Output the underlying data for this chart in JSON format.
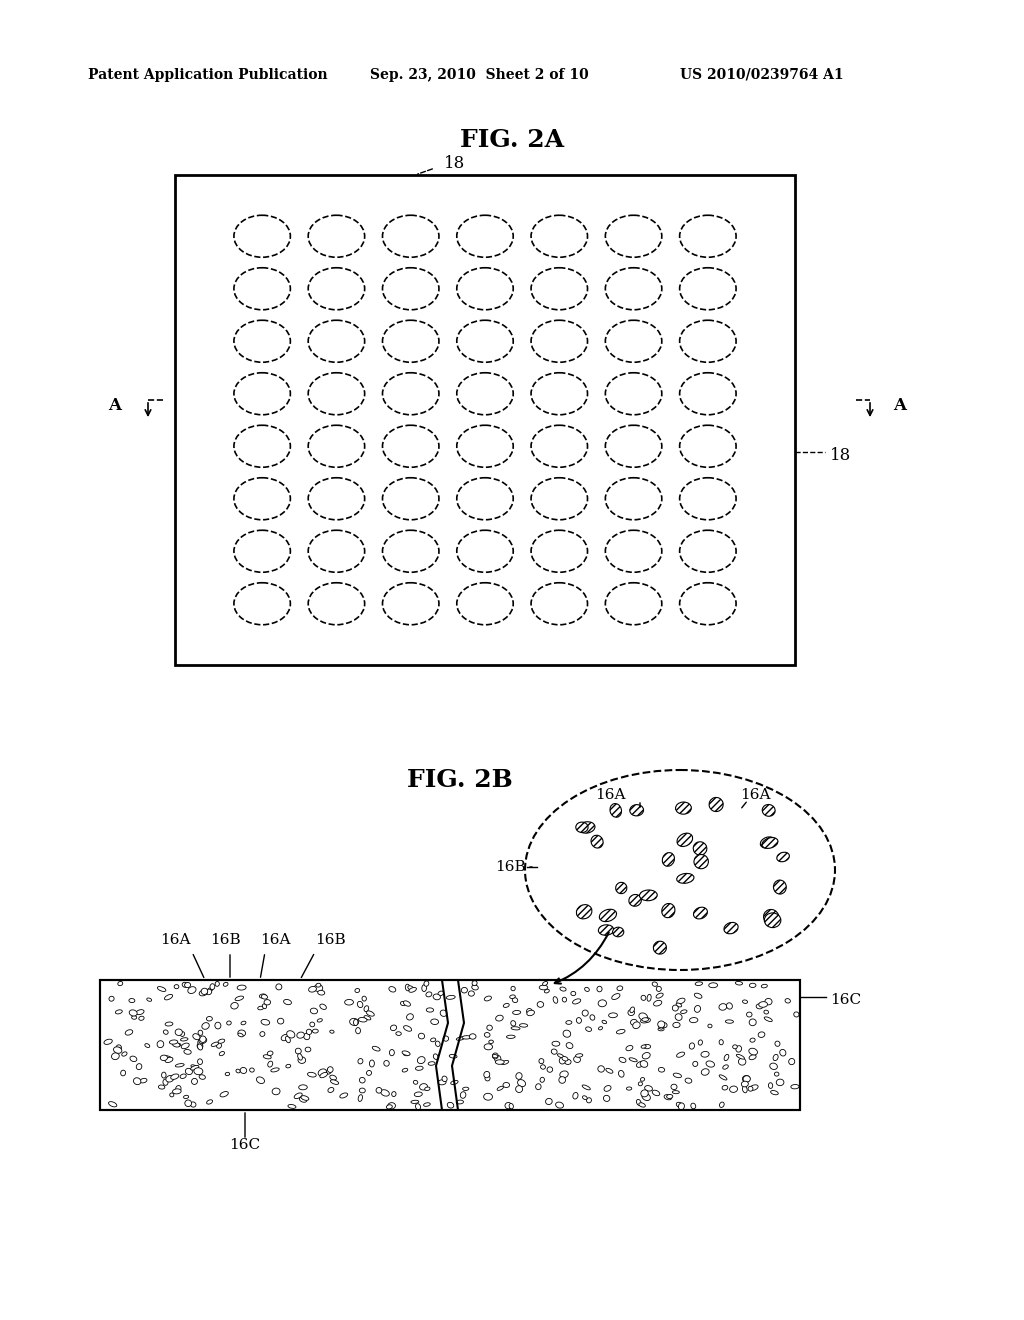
{
  "header_left": "Patent Application Publication",
  "header_mid": "Sep. 23, 2010  Sheet 2 of 10",
  "header_right": "US 2010/0239764 A1",
  "fig2a_title": "FIG. 2A",
  "fig2b_title": "FIG. 2B",
  "label_18_top": "18",
  "label_18_right": "18",
  "label_A_left": "A",
  "label_A_right": "A",
  "grid_rows": 8,
  "grid_cols": 7,
  "circle_color": "#000000",
  "bg_color": "#ffffff",
  "rect_border_color": "#000000",
  "labels_16A_left": "16A",
  "labels_16B_left": "16B",
  "labels_16A_left2": "16A",
  "labels_16B_left2": "16B",
  "labels_16C_bottom": "16C",
  "labels_16A_top1": "16A",
  "labels_16A_top2": "16A",
  "labels_16B_right": "16B",
  "labels_16C_right": "16C"
}
